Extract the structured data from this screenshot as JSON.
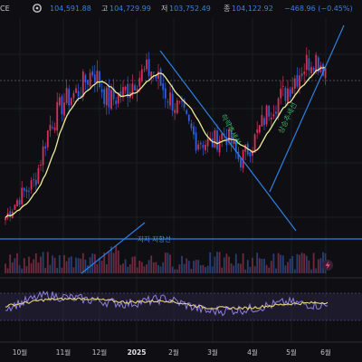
{
  "header": {
    "symbol_fragment": "CE",
    "open_label": "",
    "open_value": "104,591.88",
    "high_label": "고",
    "high_value": "104,729.99",
    "low_label": "저",
    "low_value": "103,752.49",
    "close_label": "종",
    "close_value": "104,122.92",
    "change": "−468.96 (−0.45%)"
  },
  "colors": {
    "background": "#0f0f13",
    "up_candle": "#d3315a",
    "down_candle": "#2f5fd8",
    "moving_average": "#ecec9a",
    "trendline": "#2f7fe3",
    "rsi_line": "#8f7ee0",
    "rsi_signal": "#e5d27a",
    "rsi_band": "#2a2440",
    "volume_up": "#6e2a3e",
    "volume_down": "#2a3f70"
  },
  "icons": {
    "settings_icon": "gear-icon",
    "lightning_icon": "lightning-icon"
  },
  "annotations": {
    "support_line_label": "지지 저항선",
    "downtrend_label": "하락추세선",
    "uptrend_label": "상승추세선"
  },
  "chart_data": [
    {
      "type": "candlestick",
      "title": "",
      "x": [
        "10월",
        "11월",
        "12월",
        "2025",
        "2월",
        "3월",
        "4월",
        "5월",
        "6월"
      ],
      "approx_close_series": [
        {
          "period": "10월 early",
          "value": 62000
        },
        {
          "period": "10월 late",
          "value": 68000
        },
        {
          "period": "11월 early",
          "value": 72000
        },
        {
          "period": "11월 mid",
          "value": 88000
        },
        {
          "period": "11월 late",
          "value": 95000
        },
        {
          "period": "12월 early",
          "value": 98000
        },
        {
          "period": "12월 mid",
          "value": 104000
        },
        {
          "period": "12월 late",
          "value": 95000
        },
        {
          "period": "2025 early",
          "value": 97000
        },
        {
          "period": "2025 mid",
          "value": 102000
        },
        {
          "period": "2월 early",
          "value": 104000
        },
        {
          "period": "2월 mid",
          "value": 97000
        },
        {
          "period": "2월 late",
          "value": 92000
        },
        {
          "period": "3월 early",
          "value": 84000
        },
        {
          "period": "3월 mid",
          "value": 83000
        },
        {
          "period": "3월 late",
          "value": 86000
        },
        {
          "period": "4월 early",
          "value": 78000
        },
        {
          "period": "4월 mid",
          "value": 84000
        },
        {
          "period": "4월 late",
          "value": 93000
        },
        {
          "period": "5월 early",
          "value": 97000
        },
        {
          "period": "5월 mid",
          "value": 103000
        },
        {
          "period": "5월 late",
          "value": 108000
        },
        {
          "period": "6월 early",
          "value": 104122.92
        }
      ],
      "indicators": [
        "moving average",
        "trendlines",
        "horizontal support/resistance line",
        "volume"
      ]
    },
    {
      "type": "line",
      "title": "",
      "x": [
        "10월",
        "11월",
        "12월",
        "2025",
        "2월",
        "3월",
        "4월",
        "5월",
        "6월"
      ],
      "series": [
        {
          "name": "",
          "values": [
            45,
            68,
            60,
            52,
            62,
            38,
            42,
            55,
            48
          ]
        },
        {
          "name": "",
          "values": [
            48,
            60,
            62,
            55,
            58,
            45,
            44,
            52,
            55
          ]
        }
      ]
    }
  ]
}
